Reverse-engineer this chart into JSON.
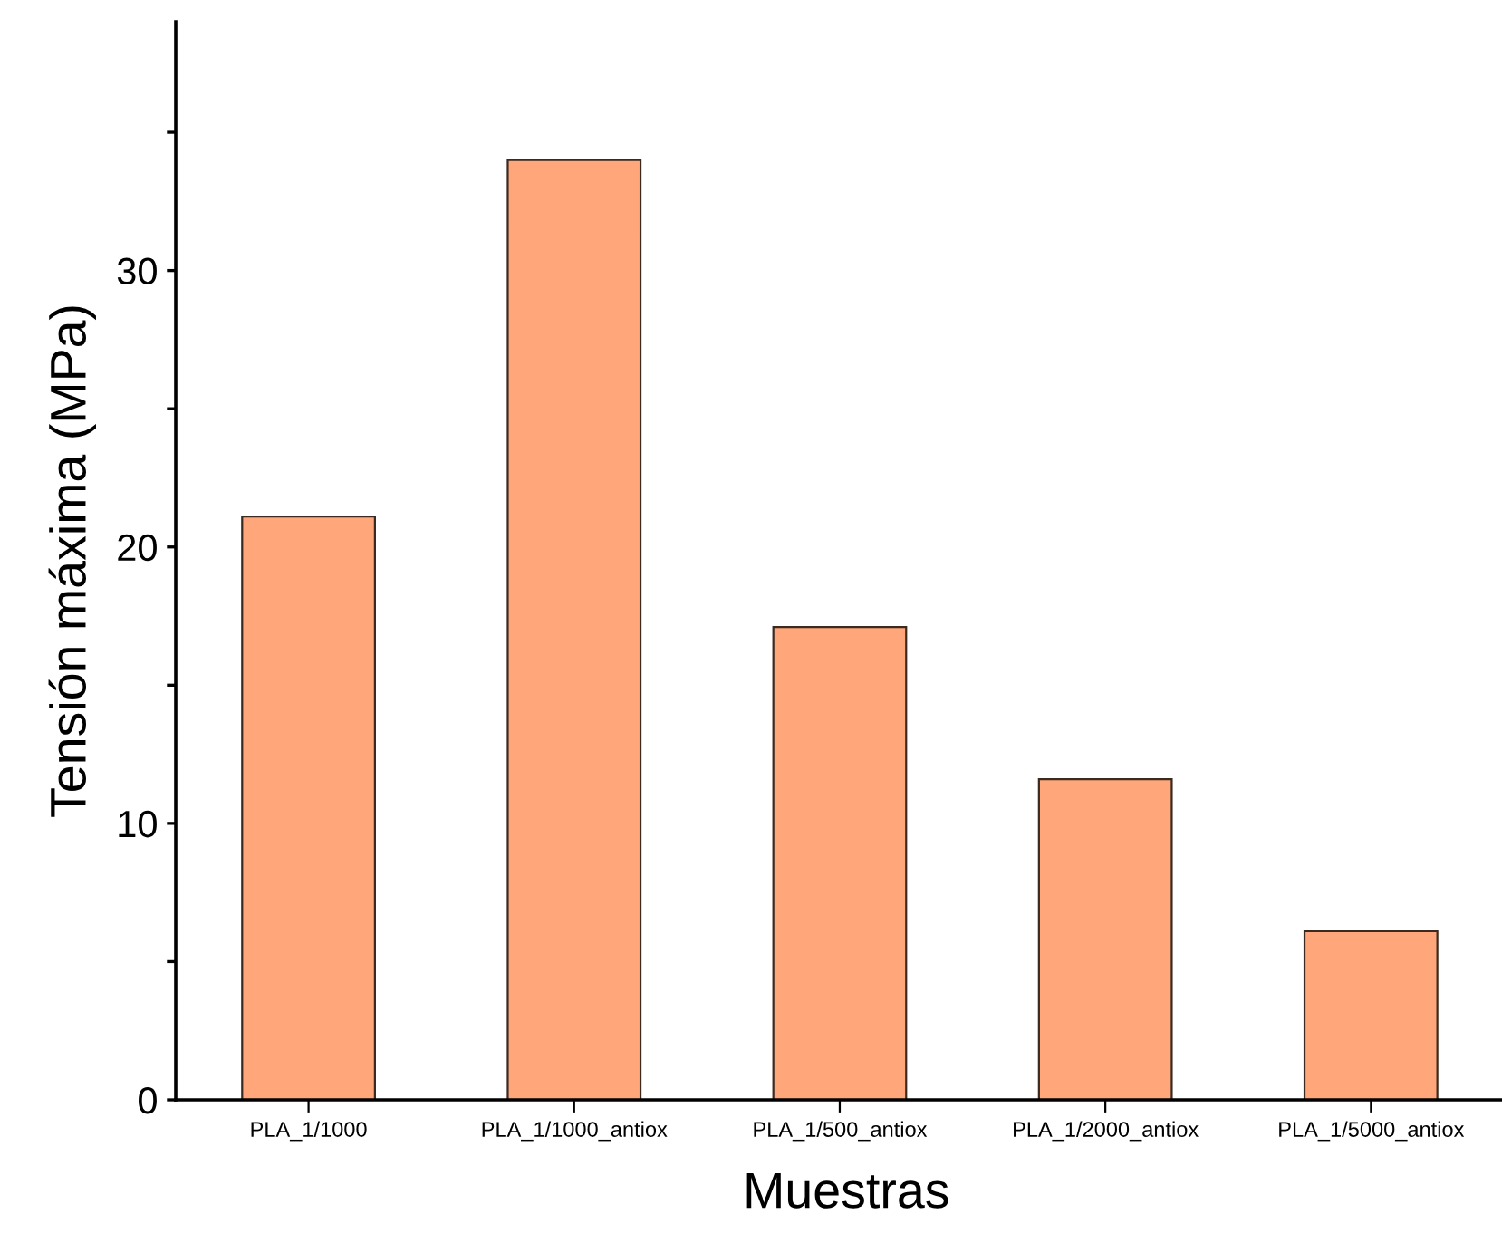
{
  "chart_data": {
    "type": "bar",
    "xlabel": "Muestras",
    "ylabel": "Tensión máxima (MPa)",
    "categories": [
      "PLA_1/1000",
      "PLA_1/1000_antiox",
      "PLA_1/500_antiox",
      "PLA_1/2000_antiox",
      "PLA_1/5000_antiox"
    ],
    "values": [
      21.1,
      34.0,
      17.1,
      11.6,
      6.1
    ],
    "color": "#ffa77a",
    "ylim": [
      0,
      39
    ],
    "yticks": [
      0,
      {
        "value": 5,
        "label": null
      },
      10,
      {
        "value": 15,
        "label": null
      },
      20,
      {
        "value": 25,
        "label": null
      },
      30,
      {
        "value": 35,
        "label": null
      }
    ],
    "grid": false
  }
}
